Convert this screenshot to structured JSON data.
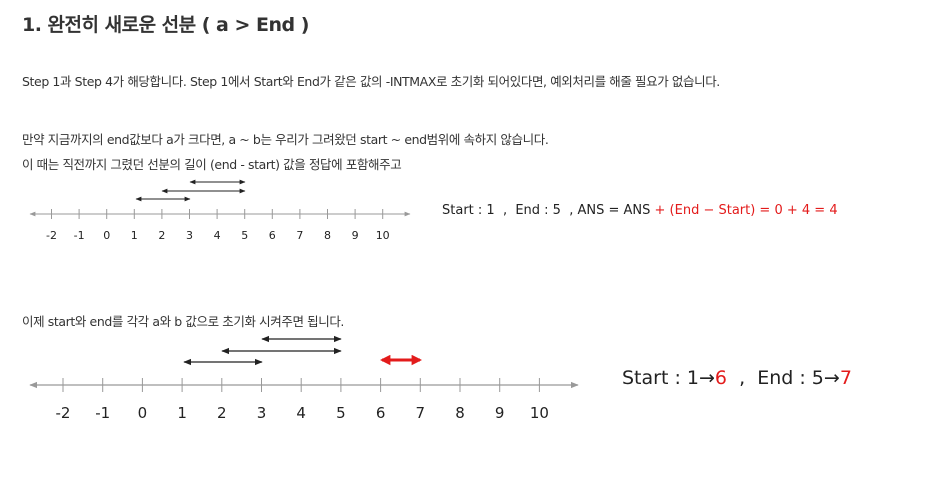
{
  "heading": "1. 완전히 새로운 선분 ( a > End )",
  "para1": "Step 1과 Step 4가 해당합니다. Step 1에서 Start와 End가 같은 값의 -INTMAX로 초기화 되어있다면, 예외처리를 해줄 필요가 없습니다.",
  "para2": "만약 지금까지의 end값보다 a가 크다면, a ~ b는 우리가 그려왔던 start ~ end범위에 속하지 않습니다.",
  "para3": "이 때는 직전까지 그렸던 선분의 길이 (end - start) 값을 정답에 포함해주고",
  "figure1": {
    "ticks": [
      "-2",
      "-1",
      "0",
      "1",
      "2",
      "3",
      "4",
      "5",
      "6",
      "7",
      "8",
      "9",
      "10"
    ],
    "equation_black": "Start : 1  ,  End : 5  , ANS = ANS ",
    "equation_red": "+ (End − Start) = 0 + 4 = 4"
  },
  "para4": "이제 start와 end를 각각 a와 b 값으로 초기화 시켜주면 됩니다.",
  "figure2": {
    "ticks": [
      "-2",
      "-1",
      "0",
      "1",
      "2",
      "3",
      "4",
      "5",
      "6",
      "7",
      "8",
      "9",
      "10"
    ],
    "start_label": "Start : 1→",
    "start_new": "6",
    "sep": "  ,  ",
    "end_label": "End : 5→",
    "end_new": "7"
  },
  "colors": {
    "highlight": "#e31b1b",
    "text": "#333333"
  }
}
